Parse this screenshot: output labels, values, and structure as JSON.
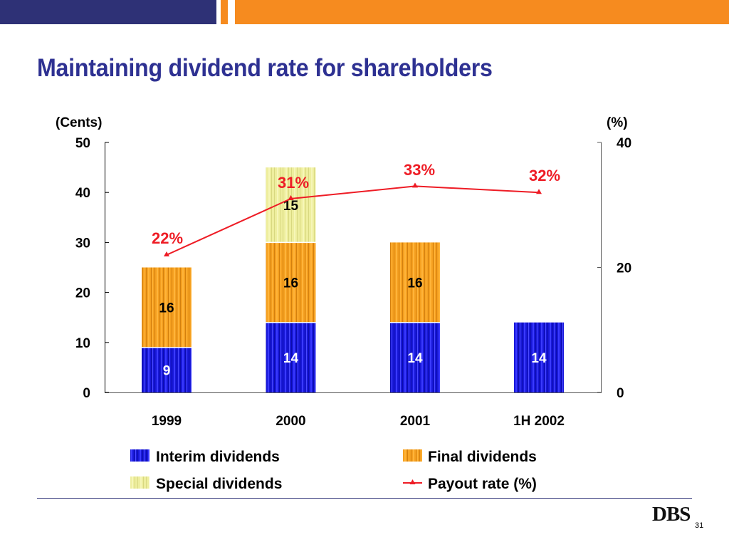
{
  "header": {
    "title": "Maintaining dividend rate for shareholders",
    "colors": {
      "navy": "#2e3176",
      "orange": "#f68b1f"
    }
  },
  "chart_data": {
    "type": "bar",
    "stacked": true,
    "title": "Maintaining dividend rate for shareholders",
    "categories": [
      "1999",
      "2000",
      "2001",
      "1H 2002"
    ],
    "series": [
      {
        "name": "Interim dividends",
        "values": [
          9,
          14,
          14,
          14
        ],
        "color": "#1515d6",
        "label_color": "#ffffff",
        "axis": "left"
      },
      {
        "name": "Final dividends",
        "values": [
          16,
          16,
          16,
          0
        ],
        "color": "#f29a1c",
        "label_color": "#000000",
        "axis": "left"
      },
      {
        "name": "Special dividends",
        "values": [
          0,
          15,
          0,
          0
        ],
        "color": "#ecec9c",
        "label_color": "#000000",
        "axis": "left"
      },
      {
        "name": "Payout rate (%)",
        "type": "line",
        "values": [
          22,
          31,
          33,
          32
        ],
        "labels": [
          "22%",
          "31%",
          "33%",
          "32%"
        ],
        "color": "#ee1c25",
        "axis": "right"
      }
    ],
    "left_axis": {
      "label": "(Cents)",
      "range": [
        0,
        50
      ],
      "ticks": [
        0,
        10,
        20,
        30,
        40,
        50
      ]
    },
    "right_axis": {
      "label": "(%)",
      "range": [
        0,
        40
      ],
      "ticks": [
        0,
        20,
        40
      ]
    },
    "legend": {
      "placement": "bottom",
      "items": [
        "Interim dividends",
        "Final dividends",
        "Special dividends",
        "Payout rate (%)"
      ]
    },
    "grid": false
  },
  "footer": {
    "logo": "DBS",
    "page_number": "31"
  }
}
